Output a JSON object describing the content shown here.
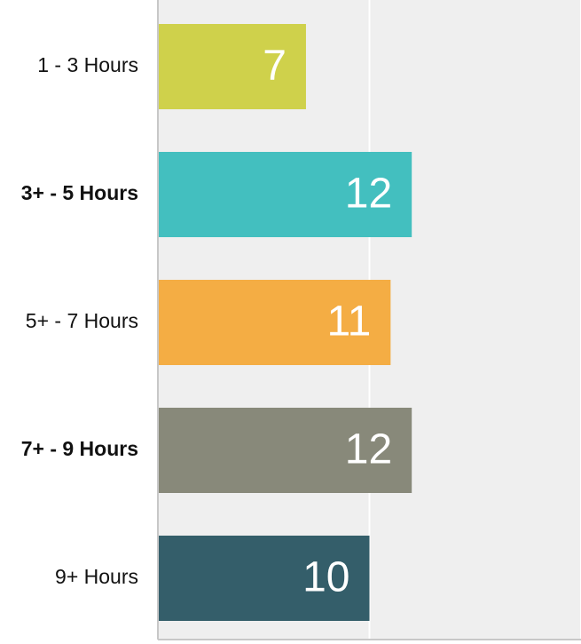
{
  "chart_data": {
    "type": "bar",
    "orientation": "horizontal",
    "categories": [
      "1 - 3 Hours",
      "3+ - 5 Hours",
      "5+ - 7 Hours",
      "7+ - 9 Hours",
      "9+ Hours"
    ],
    "values": [
      7,
      12,
      11,
      12,
      10
    ],
    "colors": [
      "#cfd14b",
      "#43bfbf",
      "#f4ad44",
      "#88897a",
      "#345e6a"
    ],
    "xlim": [
      0,
      20
    ],
    "xticks": [
      0,
      10,
      20
    ],
    "grid": true
  }
}
